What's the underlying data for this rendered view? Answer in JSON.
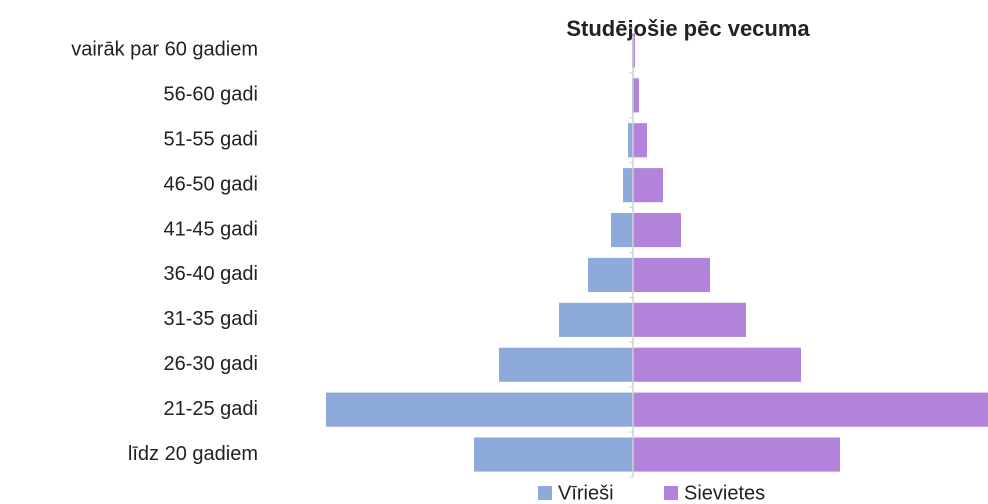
{
  "chart_data": {
    "type": "pyramid",
    "title": "Studējošie pēc vecuma",
    "categories": [
      "vairāk par 60 gadiem",
      "56-60 gadi",
      "51-55 gadi",
      "46-50 gadi",
      "41-45 gadi",
      "36-40 gadi",
      "31-35 gadi",
      "26-30 gadi",
      "21-25 gadi",
      "līdz 20 gadiem"
    ],
    "series": [
      {
        "name": "Vīrieši",
        "color": "#8eaadb",
        "values": [
          1,
          1,
          5,
          10,
          22,
          45,
          74,
          134,
          307,
          159
        ]
      },
      {
        "name": "Sievietes",
        "color": "#b383dc",
        "values": [
          2,
          6,
          14,
          30,
          48,
          77,
          113,
          168,
          355,
          207
        ]
      }
    ],
    "xlim": [
      -307,
      355
    ],
    "legend": "bottom"
  }
}
